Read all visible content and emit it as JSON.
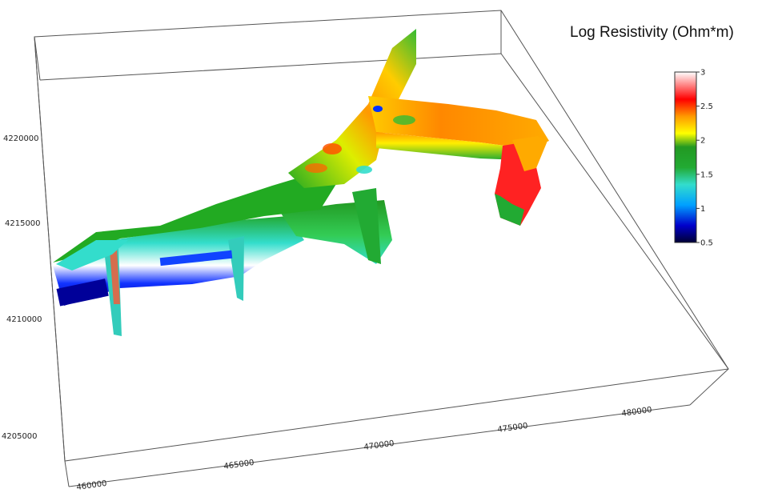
{
  "chart_data": {
    "type": "3d-surface",
    "legend": {
      "title": "Log Resistivity (Ohm*m)",
      "ticks": [
        "0.5",
        "1",
        "1.5",
        "2",
        "2.5",
        "3"
      ],
      "range": [
        0.5,
        3
      ],
      "colors": [
        "#000033",
        "#0000ff",
        "#00c0ff",
        "#33cc66",
        "#1a9a1a",
        "#ffff00",
        "#ff9900",
        "#ff0000",
        "#ffffff"
      ]
    },
    "axes": {
      "x_ticks": [
        "460000",
        "465000",
        "470000",
        "475000",
        "480000"
      ],
      "y_ticks": [
        "4205000",
        "4210000",
        "4215000",
        "4220000"
      ]
    }
  }
}
